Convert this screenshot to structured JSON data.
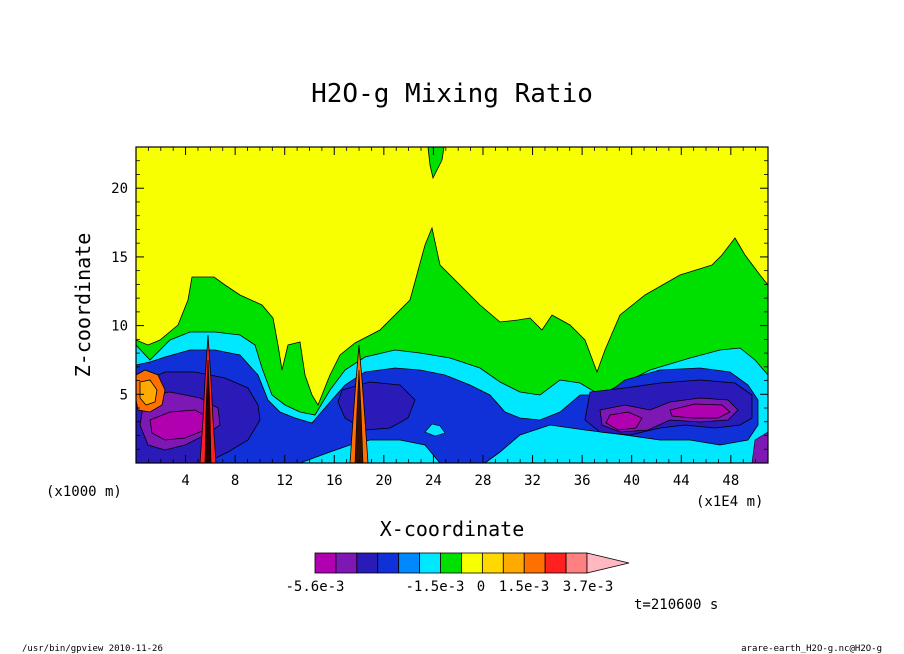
{
  "chart_data": {
    "type": "heatmap",
    "title": "H2O-g Mixing Ratio",
    "xlabel": "X-coordinate",
    "ylabel": "Z-coordinate",
    "x_unit": "(x1E4 m)",
    "y_unit": "(x1000 m)",
    "xlim": [
      0,
      51
    ],
    "ylim": [
      0,
      23
    ],
    "x_ticks": [
      4,
      8,
      12,
      16,
      20,
      24,
      28,
      32,
      36,
      40,
      44,
      48
    ],
    "y_ticks": [
      5,
      10,
      15,
      20
    ],
    "time_label": "t=210600 s",
    "colorbar": {
      "labels": [
        "-5.6e-3",
        "-1.5e-3",
        "0",
        "1.5e-3",
        "3.7e-3"
      ],
      "colors": [
        "#b000b0",
        "#7d18b5",
        "#2a1ab8",
        "#1030d8",
        "#0088ff",
        "#00e8ff",
        "#00e000",
        "#f8ff00",
        "#ffd800",
        "#ffaa00",
        "#ff7000",
        "#ff2020",
        "#ff8080",
        "#ffb8c0"
      ]
    },
    "grid": false
  },
  "footer": {
    "left": "/usr/bin/gpview   2010-11-26",
    "right": "arare-earth_H2O-g.nc@H2O-g"
  }
}
